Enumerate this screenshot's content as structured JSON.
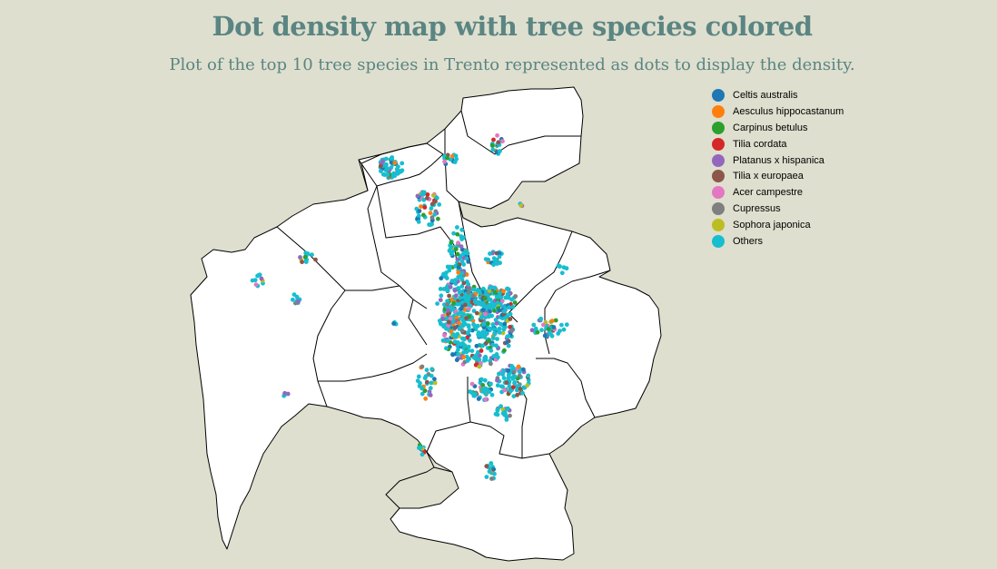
{
  "title": "Dot density map with tree species colored",
  "subtitle": "Plot of the top 10 tree species in Trento represented as dots to display the density.",
  "legend": [
    {
      "label": "Celtis australis",
      "color": "#1f77b4"
    },
    {
      "label": "Aesculus hippocastanum",
      "color": "#ff7f0e"
    },
    {
      "label": "Carpinus betulus",
      "color": "#2ca02c"
    },
    {
      "label": "Tilia cordata",
      "color": "#d62728"
    },
    {
      "label": "Platanus x hispanica",
      "color": "#9467bd"
    },
    {
      "label": "Tilia x europaea",
      "color": "#8c564b"
    },
    {
      "label": "Acer campestre",
      "color": "#e377c2"
    },
    {
      "label": "Cupressus",
      "color": "#7f7f7f"
    },
    {
      "label": "Sophora japonica",
      "color": "#bcbd22"
    },
    {
      "label": "Others",
      "color": "#17becf"
    }
  ],
  "colors": {
    "background": "#dfdfcf",
    "title": "#5a8582",
    "region_fill": "#ffffff",
    "region_stroke": "#000000"
  }
}
